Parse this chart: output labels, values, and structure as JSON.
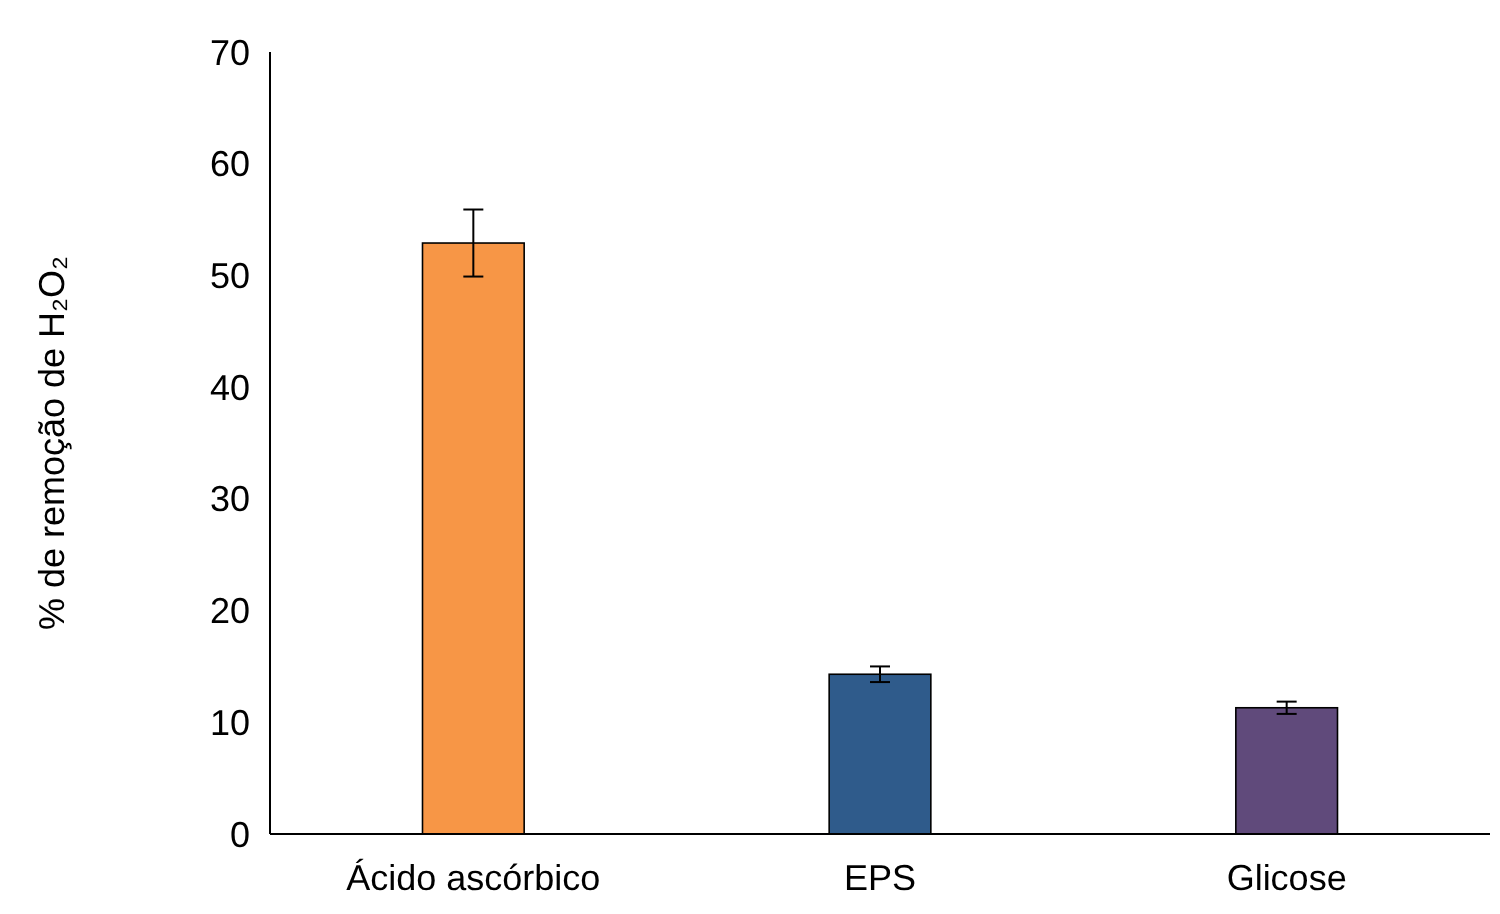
{
  "chart_data": {
    "type": "bar",
    "ylabel": "% de remoção de H₂O₂",
    "categories": [
      "Ácido ascórbico",
      "EPS",
      "Glicose"
    ],
    "values": [
      52.9,
      14.3,
      11.3
    ],
    "colors": [
      "#f79646",
      "#2f5b8b",
      "#604a7b"
    ],
    "errors": [
      3,
      0.7,
      0.55
    ],
    "ylim": [
      0,
      70
    ],
    "yticks": [
      0,
      10,
      20,
      30,
      40,
      50,
      60,
      70
    ],
    "grid": false
  }
}
